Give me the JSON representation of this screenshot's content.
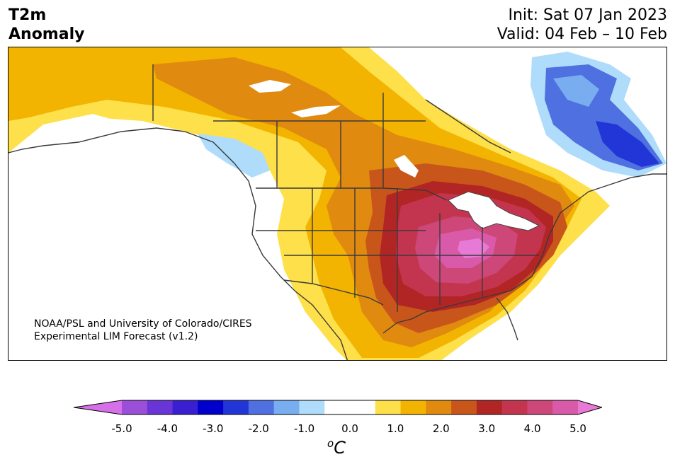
{
  "header": {
    "title_line1": "T2m",
    "title_line2": "Anomaly",
    "init_label": "Init: Sat 07 Jan 2023",
    "valid_label": "Valid: 04 Feb – 10 Feb"
  },
  "map": {
    "credit_line1": "NOAA/PSL and University of Colorado/CIRES",
    "credit_line2": "Experimental LIM Forecast (v1.2)"
  },
  "colorbar": {
    "tick_labels": [
      "-5.0",
      "-4.0",
      "-3.0",
      "-2.0",
      "-1.0",
      "0.0",
      "1.0",
      "2.0",
      "3.0",
      "4.0",
      "5.0"
    ],
    "unit_prefix": "o",
    "unit_label": "C",
    "colors": [
      "#d670e8",
      "#9b4fd9",
      "#6a35d6",
      "#3a1fd0",
      "#0000cd",
      "#2236d8",
      "#4f70e0",
      "#78aef0",
      "#aedcfa",
      "#ffffff",
      "#ffffff",
      "#fde04a",
      "#f2b400",
      "#e08a10",
      "#c8561a",
      "#b22525",
      "#c3354f",
      "#cd4878",
      "#d85aa8",
      "#e77ad6"
    ]
  }
}
